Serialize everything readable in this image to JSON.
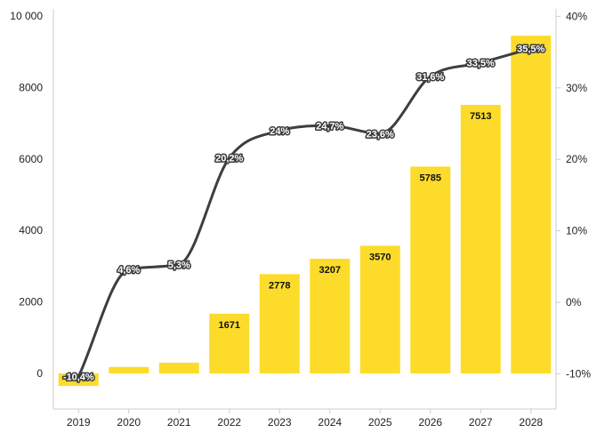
{
  "chart_data": {
    "type": "bar",
    "categories": [
      "2019",
      "2020",
      "2021",
      "2022",
      "2023",
      "2024",
      "2025",
      "2026",
      "2027",
      "2028"
    ],
    "series": [
      {
        "type": "bar",
        "axis": "left",
        "values": [
          -350,
          180,
          300,
          1671,
          2778,
          3207,
          3570,
          5785,
          7513,
          9450
        ],
        "labels": [
          "",
          "",
          "",
          "1671",
          "2778",
          "3207",
          "3570",
          "5785",
          "7513",
          ""
        ]
      },
      {
        "type": "line",
        "axis": "right",
        "values": [
          -10.4,
          4.6,
          5.3,
          20.2,
          24,
          24.7,
          23.6,
          31.6,
          33.5,
          35.5
        ],
        "labels": [
          "-10,4%",
          "4,6%",
          "5,3%",
          "20,2%",
          "24%",
          "24,7%",
          "23,6%",
          "31,6%",
          "33,5%",
          "35,5%"
        ]
      }
    ],
    "y_left": {
      "ylim": [
        -1000,
        10000
      ],
      "ticks": [
        0,
        2000,
        4000,
        6000,
        8000,
        10000
      ],
      "tick_labels": [
        "0",
        "2000",
        "4000",
        "6000",
        "8000",
        "10 000"
      ]
    },
    "y_right": {
      "ylim": [
        -15,
        40
      ],
      "ticks": [
        -10,
        0,
        10,
        20,
        30,
        40
      ],
      "tick_labels": [
        "-10%",
        "0%",
        "10%",
        "20%",
        "30%",
        "40%"
      ]
    },
    "bar_color": "#fddb2a",
    "line_color": "#3d3d42",
    "axis_color": "#cccccc",
    "grid": false,
    "legend": "none"
  }
}
